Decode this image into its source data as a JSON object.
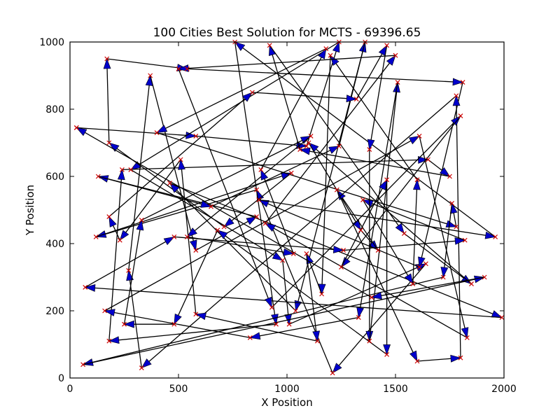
{
  "chart_data": {
    "type": "line",
    "title": "100 Cities Best Solution for MCTS - 69396.65",
    "xlabel": "X Position",
    "ylabel": "Y Position",
    "xlim": [
      0,
      2000
    ],
    "ylim": [
      0,
      1000
    ],
    "xticks": [
      0,
      500,
      1000,
      1500,
      2000
    ],
    "yticks": [
      0,
      200,
      400,
      600,
      800,
      1000
    ],
    "grid": false,
    "colors": {
      "edge": "#000000",
      "arrowhead": "#0000cc",
      "city_marker": "#cc0000"
    },
    "series": [
      {
        "points": [
          [
            30,
            745
          ],
          [
            580,
            720
          ],
          [
            1090,
            690
          ],
          [
            1240,
            1000
          ],
          [
            280,
            620
          ],
          [
            980,
            350
          ],
          [
            1010,
            160
          ],
          [
            1640,
            340
          ],
          [
            1210,
            15
          ],
          [
            860,
            560
          ],
          [
            120,
            420
          ],
          [
            1020,
            610
          ],
          [
            710,
            450
          ],
          [
            180,
            700
          ],
          [
            170,
            950
          ],
          [
            540,
            920
          ],
          [
            1810,
            880
          ],
          [
            1610,
            330
          ],
          [
            870,
            530
          ],
          [
            1960,
            420
          ],
          [
            760,
            1000
          ],
          [
            950,
            160
          ],
          [
            180,
            110
          ],
          [
            240,
            620
          ],
          [
            1650,
            650
          ],
          [
            1750,
            600
          ],
          [
            1060,
            680
          ],
          [
            920,
            990
          ],
          [
            1540,
            430
          ],
          [
            1850,
            280
          ],
          [
            1100,
            700
          ],
          [
            1340,
            440
          ],
          [
            1420,
            380
          ],
          [
            1230,
            560
          ],
          [
            1600,
            50
          ],
          [
            1800,
            60
          ],
          [
            1780,
            840
          ],
          [
            330,
            30
          ],
          [
            270,
            320
          ],
          [
            370,
            900
          ],
          [
            580,
            380
          ],
          [
            860,
            480
          ],
          [
            130,
            600
          ],
          [
            650,
            510
          ],
          [
            1240,
            690
          ],
          [
            1360,
            1000
          ],
          [
            1040,
            200
          ],
          [
            460,
            580
          ],
          [
            1990,
            180
          ],
          [
            70,
            270
          ],
          [
            480,
            420
          ],
          [
            1260,
            380
          ],
          [
            1820,
            410
          ],
          [
            1350,
            530
          ],
          [
            1580,
            280
          ],
          [
            1600,
            590
          ],
          [
            1200,
            960
          ],
          [
            1160,
            250
          ],
          [
            1090,
            370
          ],
          [
            1140,
            110
          ],
          [
            580,
            190
          ],
          [
            510,
            650
          ],
          [
            230,
            410
          ],
          [
            180,
            480
          ],
          [
            840,
            850
          ],
          [
            1320,
            830
          ],
          [
            1460,
            990
          ],
          [
            1380,
            680
          ],
          [
            1380,
            110
          ],
          [
            1510,
            880
          ],
          [
            1330,
            180
          ],
          [
            830,
            120
          ],
          [
            160,
            200
          ],
          [
            1610,
            720
          ],
          [
            1830,
            120
          ],
          [
            900,
            460
          ],
          [
            1500,
            960
          ],
          [
            500,
            920
          ],
          [
            930,
            210
          ],
          [
            1800,
            780
          ],
          [
            1250,
            330
          ],
          [
            1460,
            590
          ],
          [
            1460,
            70
          ],
          [
            680,
            440
          ],
          [
            480,
            160
          ],
          [
            250,
            160
          ],
          [
            330,
            470
          ],
          [
            1110,
            720
          ],
          [
            540,
            420
          ],
          [
            1030,
            370
          ],
          [
            880,
            620
          ],
          [
            1180,
            980
          ],
          [
            400,
            730
          ],
          [
            1780,
            450
          ],
          [
            1760,
            520
          ],
          [
            1720,
            300
          ],
          [
            60,
            40
          ],
          [
            1910,
            300
          ],
          [
            1390,
            240
          ],
          [
            30,
            745
          ]
        ]
      }
    ]
  }
}
